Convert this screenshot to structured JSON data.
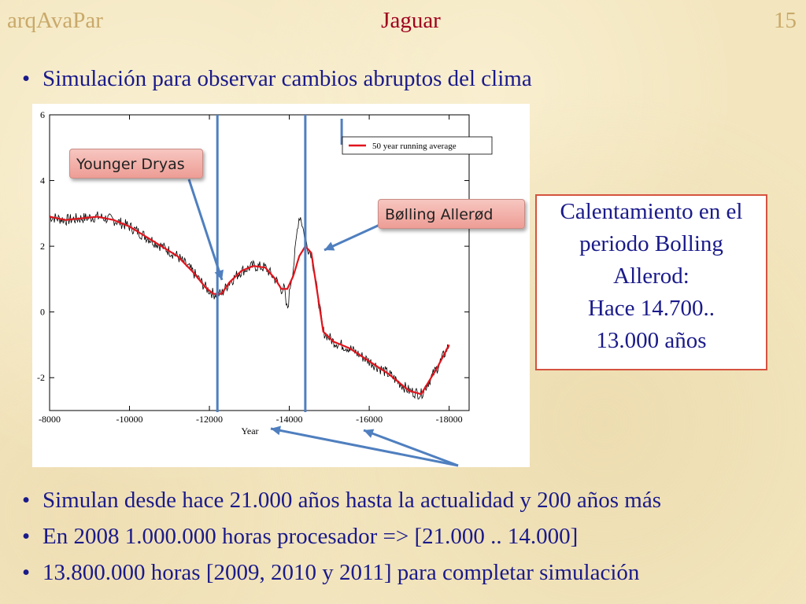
{
  "header": {
    "left": "arqAvaPar",
    "center": "Jaguar",
    "right": "15"
  },
  "bullets": {
    "top": "Simulación para observar cambios abruptos del clima",
    "b2": "Simulan desde hace 21.000 años hasta la actualidad y 200 años más",
    "b3": "En 2008 1.000.000 horas procesador => [21.000 .. 14.000]",
    "b4": "13.800.000 horas [2009, 2010 y 2011] para completar simulación",
    "marker": "•"
  },
  "callouts": {
    "younger_dryas": "Younger Dryas",
    "bolling_allerod": "Bølling Allerød"
  },
  "info_box": {
    "lines": [
      "Calentamiento en el",
      "periodo Bolling",
      "Allerod:",
      "Hace 14.700..",
      "13.000 años"
    ]
  },
  "colors": {
    "running_average": "#e0141c",
    "raw": "#000000",
    "marker_lines": "#4f7fbf",
    "header_red": "#a0001e",
    "body_text": "#1a1a8a"
  },
  "chart_data": {
    "type": "line",
    "xlabel": "Year",
    "ylabel": "",
    "x_ticks": [
      -8000,
      -10000,
      -12000,
      -14000,
      -16000,
      -18000
    ],
    "y_ticks": [
      -2,
      0,
      2,
      4,
      6
    ],
    "xlim": [
      -8000,
      -18500
    ],
    "ylim": [
      -3,
      6
    ],
    "legend": {
      "label": "50 year running average",
      "position": "top-right"
    },
    "vertical_markers": [
      -12200,
      -14400
    ],
    "series": [
      {
        "name": "50 year running average",
        "x": [
          -8000,
          -8400,
          -8800,
          -9200,
          -9600,
          -10000,
          -10400,
          -10800,
          -11200,
          -11600,
          -11900,
          -12100,
          -12300,
          -12500,
          -12800,
          -13100,
          -13400,
          -13650,
          -13800,
          -13950,
          -14100,
          -14250,
          -14400,
          -14550,
          -14700,
          -14850,
          -15100,
          -15500,
          -16000,
          -16500,
          -17000,
          -17300,
          -17700,
          -18000
        ],
        "y": [
          2.9,
          2.8,
          2.85,
          2.9,
          2.8,
          2.6,
          2.3,
          2.0,
          1.7,
          1.2,
          0.75,
          0.55,
          0.55,
          0.9,
          1.25,
          1.4,
          1.35,
          1.0,
          0.7,
          0.7,
          1.1,
          1.7,
          2.0,
          1.8,
          0.6,
          -0.6,
          -0.9,
          -1.1,
          -1.5,
          -1.9,
          -2.4,
          -2.5,
          -1.7,
          -1.0
        ]
      }
    ]
  }
}
